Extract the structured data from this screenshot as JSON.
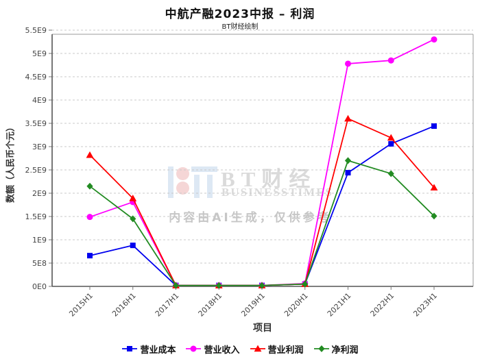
{
  "title": "中航产融2023中报 – 利润",
  "subtitle": "BT财经绘制",
  "watermark": {
    "brand": "BT财经",
    "brand_sub": "BUSINESSTIMES",
    "ai_note": "内容由AI生成，仅供参考"
  },
  "chart_data": {
    "type": "line",
    "title": "中航产融2023中报 – 利润",
    "subtitle": "BT财经绘制",
    "xlabel": "项目",
    "ylabel": "数额（人民币个元）",
    "x": [
      "2015H1",
      "2016H1",
      "2017H1",
      "2018H1",
      "2019H1",
      "2020H1",
      "2021H1",
      "2022H1",
      "2023H1"
    ],
    "ylim": [
      0,
      5500000000.0
    ],
    "ytick_step": 500000000.0,
    "ytick_labels": [
      "0E0",
      "5E8",
      "1E9",
      "1.5E9",
      "2E9",
      "2.5E9",
      "3E9",
      "3.5E9",
      "4E9",
      "4.5E9",
      "5E9",
      "5.5E9"
    ],
    "grid": true,
    "grid_color": "#c9c9c9",
    "legend_position": "bottom",
    "series": [
      {
        "name": "营业成本",
        "marker": "square",
        "color": "#0000ee",
        "values": [
          660000000.0,
          880000000.0,
          20000000.0,
          20000000.0,
          20000000.0,
          50000000.0,
          2440000000.0,
          3060000000.0,
          3440000000.0
        ]
      },
      {
        "name": "营业收入",
        "marker": "circle",
        "color": "#ff00ff",
        "values": [
          1490000000.0,
          1810000000.0,
          20000000.0,
          20000000.0,
          20000000.0,
          60000000.0,
          4780000000.0,
          4850000000.0,
          5300000000.0
        ]
      },
      {
        "name": "营业利润",
        "marker": "triangle",
        "color": "#ff0000",
        "values": [
          2820000000.0,
          1890000000.0,
          20000000.0,
          20000000.0,
          20000000.0,
          50000000.0,
          3600000000.0,
          3190000000.0,
          2120000000.0
        ]
      },
      {
        "name": "净利润",
        "marker": "diamond",
        "color": "#228b22",
        "values": [
          2150000000.0,
          1450000000.0,
          20000000.0,
          20000000.0,
          20000000.0,
          50000000.0,
          2700000000.0,
          2420000000.0,
          1510000000.0
        ]
      }
    ]
  }
}
